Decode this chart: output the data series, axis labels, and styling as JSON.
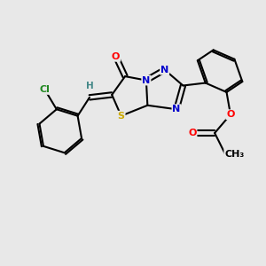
{
  "bg_color": "#e8e8e8",
  "atom_colors": {
    "C": "#000000",
    "N": "#0000cc",
    "O": "#ff0000",
    "S": "#ccaa00",
    "Cl": "#228822",
    "H": "#448888"
  },
  "bond_color": "#000000",
  "bond_width": 1.5,
  "figsize": [
    3.0,
    3.0
  ],
  "dpi": 100,
  "xlim": [
    0,
    10
  ],
  "ylim": [
    0,
    10
  ]
}
